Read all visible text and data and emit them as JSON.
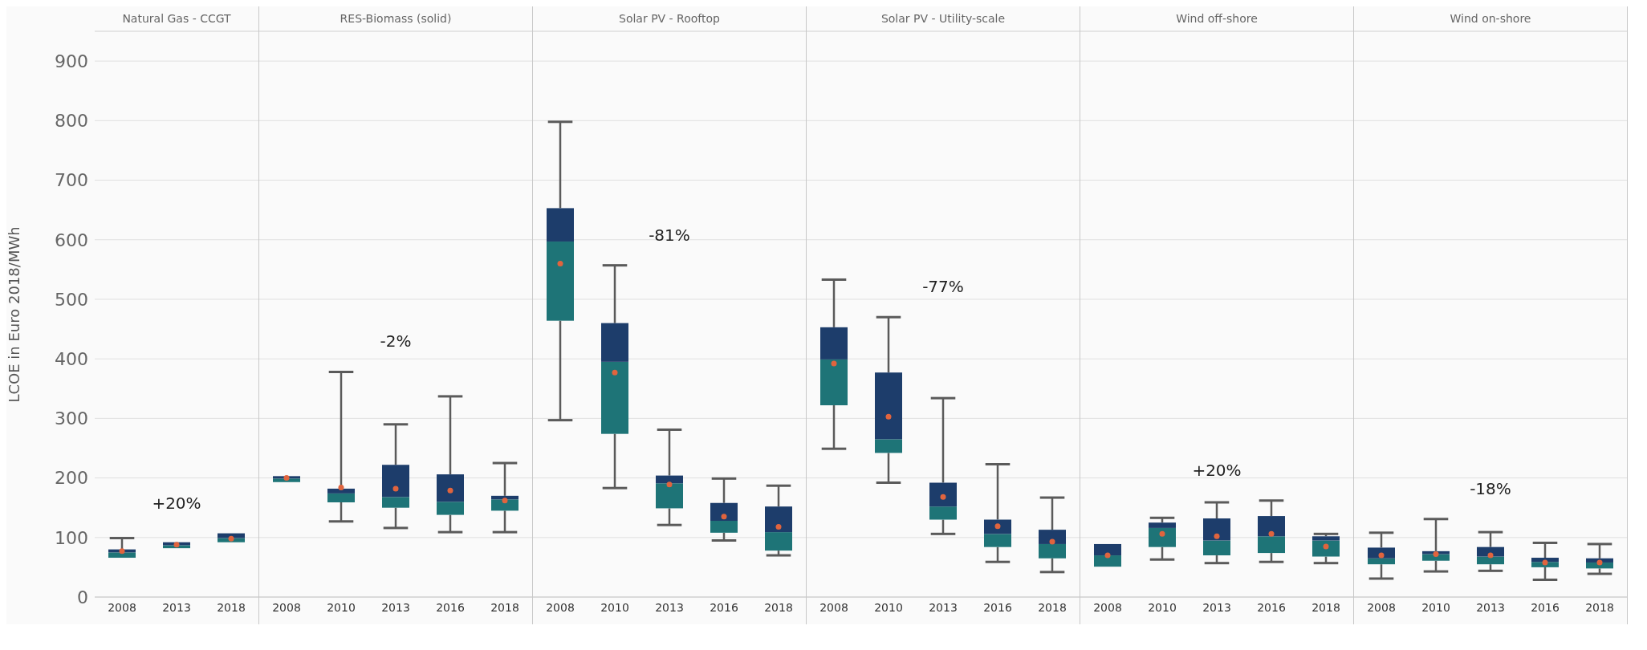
{
  "chart_data": [
    {
      "type": "box",
      "title": "Natural Gas - CCGT",
      "ylabel": "LCOE in Euro 2018/MWh",
      "categories": [
        "2008",
        "2013",
        "2018"
      ],
      "ylim": [
        0,
        950
      ],
      "yticks": [
        0,
        100,
        200,
        300,
        400,
        500,
        600,
        700,
        800,
        900
      ],
      "grid": "y",
      "marker": "circle",
      "color": "#1d3d6b",
      "colors": [
        "#1e7477",
        "#1e7477",
        "#1e7477"
      ],
      "annotations": [
        "+20%"
      ],
      "boxes": [
        {
          "low": 66,
          "q1": 66,
          "median": 75,
          "q3": 80,
          "high": 99,
          "mean": 77
        },
        {
          "low": 82,
          "q1": 82,
          "median": 87,
          "q3": 92,
          "high": 92,
          "mean": 88
        },
        {
          "low": 92,
          "q1": 92,
          "median": 99,
          "q3": 107,
          "high": 107,
          "mean": 98
        }
      ]
    },
    {
      "type": "box",
      "title": "RES-Biomass (solid)",
      "categories": [
        "2008",
        "2010",
        "2013",
        "2016",
        "2018"
      ],
      "ylim": [
        0,
        950
      ],
      "yticks": [
        0,
        100,
        200,
        300,
        400,
        500,
        600,
        700,
        800,
        900
      ],
      "tick_labels": "x",
      "grid": "y",
      "marker": "circle",
      "color": "#1d3d6b",
      "colors": [
        "#1e7477",
        "#1e7477",
        "#1e7477",
        "#1e7477",
        "#1e7477"
      ],
      "annotations": [
        "-2%"
      ],
      "boxes": [
        {
          "low": 193,
          "q1": 193,
          "median": 199,
          "q3": 203,
          "high": 203,
          "mean": 200
        },
        {
          "low": 127,
          "q1": 159,
          "median": 174,
          "q3": 182,
          "high": 378,
          "mean": 184
        },
        {
          "low": 116,
          "q1": 150,
          "median": 168,
          "q3": 222,
          "high": 290,
          "mean": 182
        },
        {
          "low": 109,
          "q1": 138,
          "median": 160,
          "q3": 206,
          "high": 337,
          "mean": 179
        },
        {
          "low": 109,
          "q1": 145,
          "median": 164,
          "q3": 170,
          "high": 225,
          "mean": 162
        }
      ]
    },
    {
      "type": "box",
      "title": "Solar PV - Rooftop",
      "categories": [
        "2008",
        "2010",
        "2013",
        "2016",
        "2018"
      ],
      "ylim": [
        0,
        950
      ],
      "yticks": [
        0,
        100,
        200,
        300,
        400,
        500,
        600,
        700,
        800,
        900
      ],
      "tick_labels": "x",
      "grid": "y",
      "marker": "circle",
      "color": "#1d3d6b",
      "colors": [
        "#1e7477",
        "#1e7477",
        "#1e7477",
        "#1e7477",
        "#1e7477"
      ],
      "annotations": [
        "-81%"
      ],
      "boxes": [
        {
          "low": 297,
          "q1": 464,
          "median": 597,
          "q3": 653,
          "high": 798,
          "mean": 560
        },
        {
          "low": 183,
          "q1": 274,
          "median": 395,
          "q3": 460,
          "high": 557,
          "mean": 377
        },
        {
          "low": 121,
          "q1": 149,
          "median": 191,
          "q3": 204,
          "high": 281,
          "mean": 189
        },
        {
          "low": 95,
          "q1": 108,
          "median": 128,
          "q3": 158,
          "high": 199,
          "mean": 135
        },
        {
          "low": 70,
          "q1": 78,
          "median": 109,
          "q3": 152,
          "high": 187,
          "mean": 118
        }
      ]
    },
    {
      "type": "box",
      "title": "Solar PV - Utility-scale",
      "categories": [
        "2008",
        "2010",
        "2013",
        "2016",
        "2018"
      ],
      "ylim": [
        0,
        950
      ],
      "yticks": [
        0,
        100,
        200,
        300,
        400,
        500,
        600,
        700,
        800,
        900
      ],
      "tick_labels": "x",
      "grid": "y",
      "marker": "circle",
      "color": "#1d3d6b",
      "colors": [
        "#1e7477",
        "#1e7477",
        "#1e7477",
        "#1e7477",
        "#1e7477"
      ],
      "annotations": [
        "-77%"
      ],
      "boxes": [
        {
          "low": 249,
          "q1": 322,
          "median": 399,
          "q3": 453,
          "high": 533,
          "mean": 392
        },
        {
          "low": 192,
          "q1": 242,
          "median": 265,
          "q3": 377,
          "high": 470,
          "mean": 303
        },
        {
          "low": 106,
          "q1": 130,
          "median": 152,
          "q3": 192,
          "high": 334,
          "mean": 168
        },
        {
          "low": 59,
          "q1": 84,
          "median": 106,
          "q3": 130,
          "high": 223,
          "mean": 119
        },
        {
          "low": 42,
          "q1": 65,
          "median": 89,
          "q3": 113,
          "high": 167,
          "mean": 93
        }
      ]
    },
    {
      "type": "box",
      "title": "Wind off-shore",
      "categories": [
        "2008",
        "2010",
        "2013",
        "2016",
        "2018"
      ],
      "ylim": [
        0,
        950
      ],
      "yticks": [
        0,
        100,
        200,
        300,
        400,
        500,
        600,
        700,
        800,
        900
      ],
      "tick_labels": "x",
      "grid": "y",
      "marker": "circle",
      "color": "#1d3d6b",
      "colors": [
        "#1e7477",
        "#1e7477",
        "#1e7477",
        "#1e7477",
        "#1e7477"
      ],
      "annotations": [
        "+20%"
      ],
      "boxes": [
        {
          "low": 51,
          "q1": 51,
          "median": 70,
          "q3": 89,
          "high": 89,
          "mean": 70
        },
        {
          "low": 63,
          "q1": 84,
          "median": 116,
          "q3": 125,
          "high": 133,
          "mean": 106
        },
        {
          "low": 57,
          "q1": 70,
          "median": 95,
          "q3": 132,
          "high": 159,
          "mean": 102
        },
        {
          "low": 59,
          "q1": 74,
          "median": 102,
          "q3": 136,
          "high": 162,
          "mean": 106
        },
        {
          "low": 57,
          "q1": 68,
          "median": 95,
          "q3": 102,
          "high": 106,
          "mean": 85
        }
      ]
    },
    {
      "type": "box",
      "title": "Wind on-shore",
      "categories": [
        "2008",
        "2010",
        "2013",
        "2016",
        "2018"
      ],
      "ylim": [
        0,
        950
      ],
      "yticks": [
        0,
        100,
        200,
        300,
        400,
        500,
        600,
        700,
        800,
        900
      ],
      "tick_labels": "x",
      "grid": "y",
      "marker": "circle",
      "color": "#1d3d6b",
      "colors": [
        "#1e7477",
        "#1e7477",
        "#1e7477",
        "#1e7477",
        "#1e7477"
      ],
      "annotations": [
        "-18%"
      ],
      "boxes": [
        {
          "low": 31,
          "q1": 55,
          "median": 65,
          "q3": 83,
          "high": 108,
          "mean": 70
        },
        {
          "low": 43,
          "q1": 61,
          "median": 72,
          "q3": 77,
          "high": 131,
          "mean": 72
        },
        {
          "low": 44,
          "q1": 55,
          "median": 68,
          "q3": 84,
          "high": 109,
          "mean": 70
        },
        {
          "low": 29,
          "q1": 50,
          "median": 59,
          "q3": 66,
          "high": 91,
          "mean": 58
        },
        {
          "low": 39,
          "q1": 48,
          "median": 58,
          "q3": 65,
          "high": 89,
          "mean": 58
        }
      ]
    }
  ]
}
